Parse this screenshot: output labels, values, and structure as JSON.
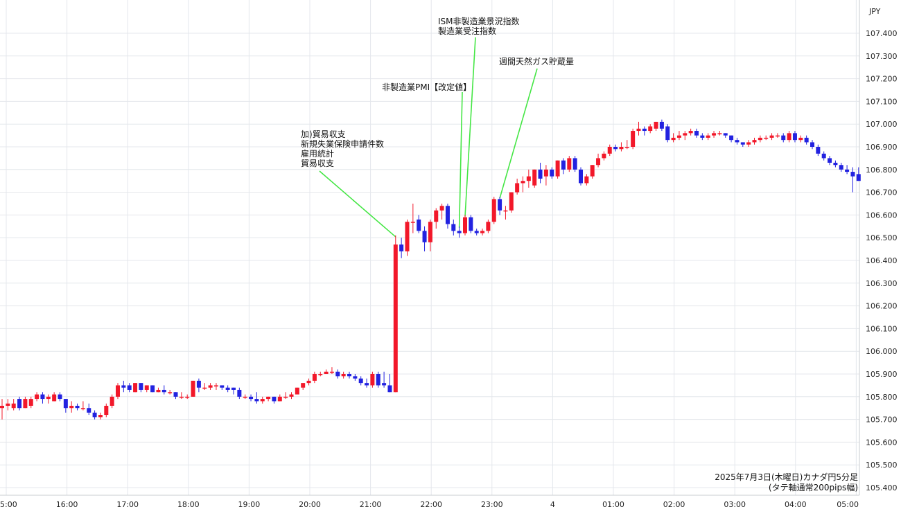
{
  "chart_data": {
    "type": "candlestick",
    "title": "",
    "currency": "JPY",
    "caption": [
      "2025年7月3日(木曜日)カナダ円5分足",
      "(タテ軸通常200pips幅)"
    ],
    "ylim": [
      105.4,
      107.45
    ],
    "y_ticks": [
      "105.400",
      "105.500",
      "105.600",
      "105.700",
      "105.800",
      "105.900",
      "106.000",
      "106.100",
      "106.200",
      "106.300",
      "106.400",
      "106.500",
      "106.600",
      "106.700",
      "106.800",
      "106.900",
      "107.000",
      "107.100",
      "107.200",
      "107.300",
      "107.400"
    ],
    "x_ticks": [
      "5:00",
      "16:00",
      "17:00",
      "18:00",
      "19:00",
      "20:00",
      "21:00",
      "22:00",
      "23:00",
      "4",
      "01:00",
      "02:00",
      "03:00",
      "04:00",
      "05:00"
    ],
    "grid": true,
    "colors": {
      "up": "#f2182a",
      "down": "#2222e0",
      "leader": "#44e644"
    },
    "annotations": [
      {
        "lines": [
          "加)貿易収支",
          "新規失業保険申請件数",
          "雇用統計",
          "貿易収支"
        ],
        "candle": 68
      },
      {
        "lines": [
          "非製造業PMI【改定値】"
        ],
        "candle": 79
      },
      {
        "lines": [
          "ISM非製造業景況指数",
          "製造業受注指数"
        ],
        "candle": 80
      },
      {
        "lines": [
          "週間天然ガス貯蔵量"
        ],
        "candle": 86
      }
    ],
    "candles": [
      {
        "o": 105.75,
        "h": 105.79,
        "l": 105.7,
        "c": 105.76
      },
      {
        "o": 105.76,
        "h": 105.79,
        "l": 105.74,
        "c": 105.77
      },
      {
        "o": 105.75,
        "h": 105.79,
        "l": 105.74,
        "c": 105.77
      },
      {
        "o": 105.79,
        "h": 105.8,
        "l": 105.74,
        "c": 105.75
      },
      {
        "o": 105.75,
        "h": 105.8,
        "l": 105.75,
        "c": 105.79
      },
      {
        "o": 105.76,
        "h": 105.8,
        "l": 105.75,
        "c": 105.79
      },
      {
        "o": 105.79,
        "h": 105.82,
        "l": 105.78,
        "c": 105.81
      },
      {
        "o": 105.81,
        "h": 105.82,
        "l": 105.77,
        "c": 105.79
      },
      {
        "o": 105.79,
        "h": 105.81,
        "l": 105.77,
        "c": 105.8
      },
      {
        "o": 105.78,
        "h": 105.82,
        "l": 105.78,
        "c": 105.81
      },
      {
        "o": 105.81,
        "h": 105.82,
        "l": 105.78,
        "c": 105.79
      },
      {
        "o": 105.79,
        "h": 105.79,
        "l": 105.73,
        "c": 105.75
      },
      {
        "o": 105.75,
        "h": 105.78,
        "l": 105.73,
        "c": 105.76
      },
      {
        "o": 105.76,
        "h": 105.77,
        "l": 105.74,
        "c": 105.75
      },
      {
        "o": 105.75,
        "h": 105.78,
        "l": 105.74,
        "c": 105.75
      },
      {
        "o": 105.75,
        "h": 105.77,
        "l": 105.72,
        "c": 105.73
      },
      {
        "o": 105.73,
        "h": 105.74,
        "l": 105.7,
        "c": 105.71
      },
      {
        "o": 105.71,
        "h": 105.73,
        "l": 105.7,
        "c": 105.72
      },
      {
        "o": 105.72,
        "h": 105.77,
        "l": 105.71,
        "c": 105.76
      },
      {
        "o": 105.76,
        "h": 105.81,
        "l": 105.75,
        "c": 105.8
      },
      {
        "o": 105.8,
        "h": 105.86,
        "l": 105.79,
        "c": 105.85
      },
      {
        "o": 105.85,
        "h": 105.87,
        "l": 105.82,
        "c": 105.84
      },
      {
        "o": 105.85,
        "h": 105.86,
        "l": 105.82,
        "c": 105.83
      },
      {
        "o": 105.82,
        "h": 105.86,
        "l": 105.82,
        "c": 105.86
      },
      {
        "o": 105.86,
        "h": 105.86,
        "l": 105.82,
        "c": 105.83
      },
      {
        "o": 105.83,
        "h": 105.85,
        "l": 105.82,
        "c": 105.85
      },
      {
        "o": 105.85,
        "h": 105.85,
        "l": 105.82,
        "c": 105.82
      },
      {
        "o": 105.82,
        "h": 105.84,
        "l": 105.82,
        "c": 105.83
      },
      {
        "o": 105.83,
        "h": 105.85,
        "l": 105.81,
        "c": 105.82
      },
      {
        "o": 105.82,
        "h": 105.83,
        "l": 105.81,
        "c": 105.82
      },
      {
        "o": 105.82,
        "h": 105.82,
        "l": 105.79,
        "c": 105.8
      },
      {
        "o": 105.8,
        "h": 105.82,
        "l": 105.79,
        "c": 105.8
      },
      {
        "o": 105.8,
        "h": 105.81,
        "l": 105.79,
        "c": 105.8
      },
      {
        "o": 105.8,
        "h": 105.87,
        "l": 105.8,
        "c": 105.87
      },
      {
        "o": 105.87,
        "h": 105.88,
        "l": 105.82,
        "c": 105.84
      },
      {
        "o": 105.84,
        "h": 105.86,
        "l": 105.83,
        "c": 105.84
      },
      {
        "o": 105.84,
        "h": 105.86,
        "l": 105.83,
        "c": 105.85
      },
      {
        "o": 105.85,
        "h": 105.86,
        "l": 105.83,
        "c": 105.85
      },
      {
        "o": 105.85,
        "h": 105.85,
        "l": 105.83,
        "c": 105.84
      },
      {
        "o": 105.84,
        "h": 105.85,
        "l": 105.82,
        "c": 105.83
      },
      {
        "o": 105.84,
        "h": 105.84,
        "l": 105.81,
        "c": 105.83
      },
      {
        "o": 105.83,
        "h": 105.84,
        "l": 105.79,
        "c": 105.8
      },
      {
        "o": 105.8,
        "h": 105.81,
        "l": 105.79,
        "c": 105.8
      },
      {
        "o": 105.8,
        "h": 105.81,
        "l": 105.78,
        "c": 105.79
      },
      {
        "o": 105.79,
        "h": 105.82,
        "l": 105.77,
        "c": 105.78
      },
      {
        "o": 105.78,
        "h": 105.8,
        "l": 105.77,
        "c": 105.79
      },
      {
        "o": 105.79,
        "h": 105.8,
        "l": 105.78,
        "c": 105.8
      },
      {
        "o": 105.8,
        "h": 105.8,
        "l": 105.77,
        "c": 105.78
      },
      {
        "o": 105.78,
        "h": 105.81,
        "l": 105.78,
        "c": 105.8
      },
      {
        "o": 105.8,
        "h": 105.82,
        "l": 105.79,
        "c": 105.8
      },
      {
        "o": 105.8,
        "h": 105.82,
        "l": 105.79,
        "c": 105.81
      },
      {
        "o": 105.81,
        "h": 105.84,
        "l": 105.81,
        "c": 105.84
      },
      {
        "o": 105.84,
        "h": 105.86,
        "l": 105.83,
        "c": 105.86
      },
      {
        "o": 105.86,
        "h": 105.88,
        "l": 105.85,
        "c": 105.87
      },
      {
        "o": 105.87,
        "h": 105.91,
        "l": 105.86,
        "c": 105.9
      },
      {
        "o": 105.9,
        "h": 105.91,
        "l": 105.89,
        "c": 105.9
      },
      {
        "o": 105.9,
        "h": 105.92,
        "l": 105.9,
        "c": 105.91
      },
      {
        "o": 105.91,
        "h": 105.93,
        "l": 105.9,
        "c": 105.91
      },
      {
        "o": 105.91,
        "h": 105.92,
        "l": 105.88,
        "c": 105.89
      },
      {
        "o": 105.89,
        "h": 105.91,
        "l": 105.88,
        "c": 105.9
      },
      {
        "o": 105.9,
        "h": 105.91,
        "l": 105.88,
        "c": 105.89
      },
      {
        "o": 105.89,
        "h": 105.9,
        "l": 105.87,
        "c": 105.88
      },
      {
        "o": 105.88,
        "h": 105.89,
        "l": 105.85,
        "c": 105.86
      },
      {
        "o": 105.86,
        "h": 105.88,
        "l": 105.84,
        "c": 105.85
      },
      {
        "o": 105.85,
        "h": 105.91,
        "l": 105.84,
        "c": 105.9
      },
      {
        "o": 105.9,
        "h": 105.91,
        "l": 105.84,
        "c": 105.85
      },
      {
        "o": 105.86,
        "h": 105.91,
        "l": 105.84,
        "c": 105.85
      },
      {
        "o": 105.85,
        "h": 105.9,
        "l": 105.82,
        "c": 105.82
      },
      {
        "o": 105.82,
        "h": 106.51,
        "l": 105.82,
        "c": 106.47
      },
      {
        "o": 106.47,
        "h": 106.5,
        "l": 106.41,
        "c": 106.44
      },
      {
        "o": 106.44,
        "h": 106.58,
        "l": 106.42,
        "c": 106.57
      },
      {
        "o": 106.57,
        "h": 106.65,
        "l": 106.52,
        "c": 106.57
      },
      {
        "o": 106.58,
        "h": 106.6,
        "l": 106.52,
        "c": 106.53
      },
      {
        "o": 106.53,
        "h": 106.55,
        "l": 106.44,
        "c": 106.48
      },
      {
        "o": 106.48,
        "h": 106.58,
        "l": 106.44,
        "c": 106.57
      },
      {
        "o": 106.57,
        "h": 106.63,
        "l": 106.54,
        "c": 106.62
      },
      {
        "o": 106.62,
        "h": 106.65,
        "l": 106.58,
        "c": 106.64
      },
      {
        "o": 106.64,
        "h": 106.65,
        "l": 106.54,
        "c": 106.56
      },
      {
        "o": 106.56,
        "h": 106.58,
        "l": 106.51,
        "c": 106.53
      },
      {
        "o": 106.53,
        "h": 106.55,
        "l": 106.5,
        "c": 106.52
      },
      {
        "o": 106.52,
        "h": 106.6,
        "l": 106.51,
        "c": 106.59
      },
      {
        "o": 106.59,
        "h": 106.6,
        "l": 106.52,
        "c": 106.53
      },
      {
        "o": 106.53,
        "h": 106.54,
        "l": 106.51,
        "c": 106.52
      },
      {
        "o": 106.52,
        "h": 106.54,
        "l": 106.51,
        "c": 106.53
      },
      {
        "o": 106.53,
        "h": 106.58,
        "l": 106.52,
        "c": 106.57
      },
      {
        "o": 106.57,
        "h": 106.68,
        "l": 106.56,
        "c": 106.67
      },
      {
        "o": 106.67,
        "h": 106.68,
        "l": 106.6,
        "c": 106.62
      },
      {
        "o": 106.62,
        "h": 106.64,
        "l": 106.58,
        "c": 106.62
      },
      {
        "o": 106.62,
        "h": 106.7,
        "l": 106.61,
        "c": 106.7
      },
      {
        "o": 106.7,
        "h": 106.76,
        "l": 106.69,
        "c": 106.74
      },
      {
        "o": 106.74,
        "h": 106.77,
        "l": 106.7,
        "c": 106.75
      },
      {
        "o": 106.75,
        "h": 106.8,
        "l": 106.72,
        "c": 106.77
      },
      {
        "o": 106.73,
        "h": 106.8,
        "l": 106.72,
        "c": 106.8
      },
      {
        "o": 106.8,
        "h": 106.83,
        "l": 106.74,
        "c": 106.76
      },
      {
        "o": 106.77,
        "h": 106.82,
        "l": 106.73,
        "c": 106.8
      },
      {
        "o": 106.8,
        "h": 106.81,
        "l": 106.76,
        "c": 106.77
      },
      {
        "o": 106.77,
        "h": 106.84,
        "l": 106.76,
        "c": 106.84
      },
      {
        "o": 106.84,
        "h": 106.85,
        "l": 106.78,
        "c": 106.8
      },
      {
        "o": 106.8,
        "h": 106.86,
        "l": 106.79,
        "c": 106.85
      },
      {
        "o": 106.85,
        "h": 106.86,
        "l": 106.79,
        "c": 106.8
      },
      {
        "o": 106.8,
        "h": 106.81,
        "l": 106.73,
        "c": 106.74
      },
      {
        "o": 106.74,
        "h": 106.78,
        "l": 106.73,
        "c": 106.77
      },
      {
        "o": 106.77,
        "h": 106.82,
        "l": 106.76,
        "c": 106.82
      },
      {
        "o": 106.82,
        "h": 106.87,
        "l": 106.81,
        "c": 106.85
      },
      {
        "o": 106.85,
        "h": 106.88,
        "l": 106.84,
        "c": 106.87
      },
      {
        "o": 106.87,
        "h": 106.91,
        "l": 106.86,
        "c": 106.9
      },
      {
        "o": 106.9,
        "h": 106.91,
        "l": 106.88,
        "c": 106.89
      },
      {
        "o": 106.89,
        "h": 106.92,
        "l": 106.88,
        "c": 106.9
      },
      {
        "o": 106.9,
        "h": 106.93,
        "l": 106.89,
        "c": 106.9
      },
      {
        "o": 106.9,
        "h": 106.98,
        "l": 106.89,
        "c": 106.97
      },
      {
        "o": 106.97,
        "h": 107.01,
        "l": 106.95,
        "c": 106.98
      },
      {
        "o": 106.98,
        "h": 106.99,
        "l": 106.95,
        "c": 106.97
      },
      {
        "o": 106.97,
        "h": 107.0,
        "l": 106.96,
        "c": 106.99
      },
      {
        "o": 106.98,
        "h": 107.01,
        "l": 106.97,
        "c": 107.01
      },
      {
        "o": 107.01,
        "h": 107.02,
        "l": 106.97,
        "c": 106.98
      },
      {
        "o": 106.99,
        "h": 107.0,
        "l": 106.92,
        "c": 106.93
      },
      {
        "o": 106.93,
        "h": 106.96,
        "l": 106.92,
        "c": 106.94
      },
      {
        "o": 106.94,
        "h": 106.97,
        "l": 106.93,
        "c": 106.95
      },
      {
        "o": 106.95,
        "h": 106.97,
        "l": 106.93,
        "c": 106.96
      },
      {
        "o": 106.96,
        "h": 106.98,
        "l": 106.95,
        "c": 106.97
      },
      {
        "o": 106.97,
        "h": 106.98,
        "l": 106.94,
        "c": 106.95
      },
      {
        "o": 106.95,
        "h": 106.96,
        "l": 106.93,
        "c": 106.94
      },
      {
        "o": 106.94,
        "h": 106.96,
        "l": 106.93,
        "c": 106.95
      },
      {
        "o": 106.95,
        "h": 106.97,
        "l": 106.94,
        "c": 106.96
      },
      {
        "o": 106.96,
        "h": 106.97,
        "l": 106.95,
        "c": 106.96
      },
      {
        "o": 106.96,
        "h": 106.96,
        "l": 106.94,
        "c": 106.95
      },
      {
        "o": 106.95,
        "h": 106.95,
        "l": 106.92,
        "c": 106.93
      },
      {
        "o": 106.93,
        "h": 106.94,
        "l": 106.91,
        "c": 106.92
      },
      {
        "o": 106.92,
        "h": 106.92,
        "l": 106.9,
        "c": 106.91
      },
      {
        "o": 106.91,
        "h": 106.93,
        "l": 106.9,
        "c": 106.92
      },
      {
        "o": 106.92,
        "h": 106.94,
        "l": 106.91,
        "c": 106.93
      },
      {
        "o": 106.93,
        "h": 106.95,
        "l": 106.92,
        "c": 106.94
      },
      {
        "o": 106.94,
        "h": 106.95,
        "l": 106.93,
        "c": 106.94
      },
      {
        "o": 106.94,
        "h": 106.96,
        "l": 106.93,
        "c": 106.95
      },
      {
        "o": 106.95,
        "h": 106.96,
        "l": 106.94,
        "c": 106.95
      },
      {
        "o": 106.95,
        "h": 106.96,
        "l": 106.92,
        "c": 106.93
      },
      {
        "o": 106.93,
        "h": 106.97,
        "l": 106.92,
        "c": 106.96
      },
      {
        "o": 106.96,
        "h": 106.97,
        "l": 106.92,
        "c": 106.93
      },
      {
        "o": 106.93,
        "h": 106.95,
        "l": 106.92,
        "c": 106.94
      },
      {
        "o": 106.94,
        "h": 106.95,
        "l": 106.91,
        "c": 106.92
      },
      {
        "o": 106.92,
        "h": 106.93,
        "l": 106.89,
        "c": 106.9
      },
      {
        "o": 106.9,
        "h": 106.91,
        "l": 106.86,
        "c": 106.87
      },
      {
        "o": 106.87,
        "h": 106.88,
        "l": 106.84,
        "c": 106.85
      },
      {
        "o": 106.85,
        "h": 106.86,
        "l": 106.82,
        "c": 106.83
      },
      {
        "o": 106.83,
        "h": 106.84,
        "l": 106.81,
        "c": 106.82
      },
      {
        "o": 106.82,
        "h": 106.83,
        "l": 106.79,
        "c": 106.8
      },
      {
        "o": 106.8,
        "h": 106.82,
        "l": 106.78,
        "c": 106.79
      },
      {
        "o": 106.79,
        "h": 106.81,
        "l": 106.7,
        "c": 106.77
      },
      {
        "o": 106.78,
        "h": 106.81,
        "l": 106.75,
        "c": 106.75
      }
    ]
  }
}
